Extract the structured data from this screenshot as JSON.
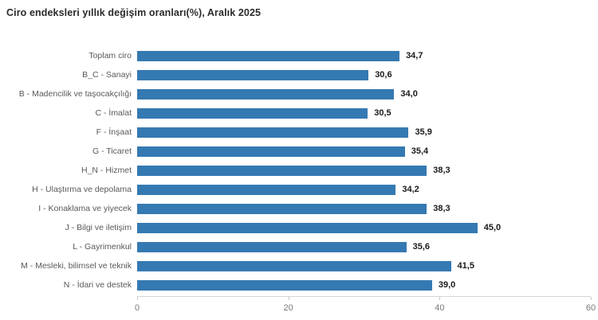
{
  "title": "Ciro endeksleri yıllık değişim oranları(%), Aralık 2025",
  "colors": {
    "bar": "#3579b2",
    "title_text": "#2b2b2b",
    "category_text": "#595959",
    "value_text": "#1a1a1a",
    "axis_line": "#d6d6d6",
    "tick_text": "#7a7a7a",
    "background": "#ffffff"
  },
  "chart_data": {
    "type": "bar",
    "orientation": "horizontal",
    "title": "Ciro endeksleri yıllık değişim oranları(%), Aralık 2025",
    "categories": [
      "Toplam ciro",
      "B_C - Sanayi",
      "B - Madencilik ve taşocakçılığı",
      "C - İmalat",
      "F - İnşaat",
      "G - Ticaret",
      "H_N - Hizmet",
      "H - Ulaştırma ve depolama",
      "I - Konaklama ve yiyecek",
      "J - Bilgi ve iletişim",
      "L - Gayrimenkul",
      "M - Mesleki, bilimsel ve teknik",
      "N - İdari ve destek"
    ],
    "values": [
      34.7,
      30.6,
      34.0,
      30.5,
      35.9,
      35.4,
      38.3,
      34.2,
      38.3,
      45.0,
      35.6,
      41.5,
      39.0
    ],
    "value_labels": [
      "34,7",
      "30,6",
      "34,0",
      "30,5",
      "35,9",
      "35,4",
      "38,3",
      "34,2",
      "38,3",
      "45,0",
      "35,6",
      "41,5",
      "39,0"
    ],
    "xlabel": "",
    "ylabel": "",
    "xlim": [
      0,
      60
    ],
    "x_ticks": [
      0,
      20,
      40,
      60
    ],
    "x_tick_labels": [
      "0",
      "20",
      "40",
      "60"
    ],
    "grid": false,
    "legend": null,
    "bar_color": "#3579b2",
    "data_labels": true
  }
}
